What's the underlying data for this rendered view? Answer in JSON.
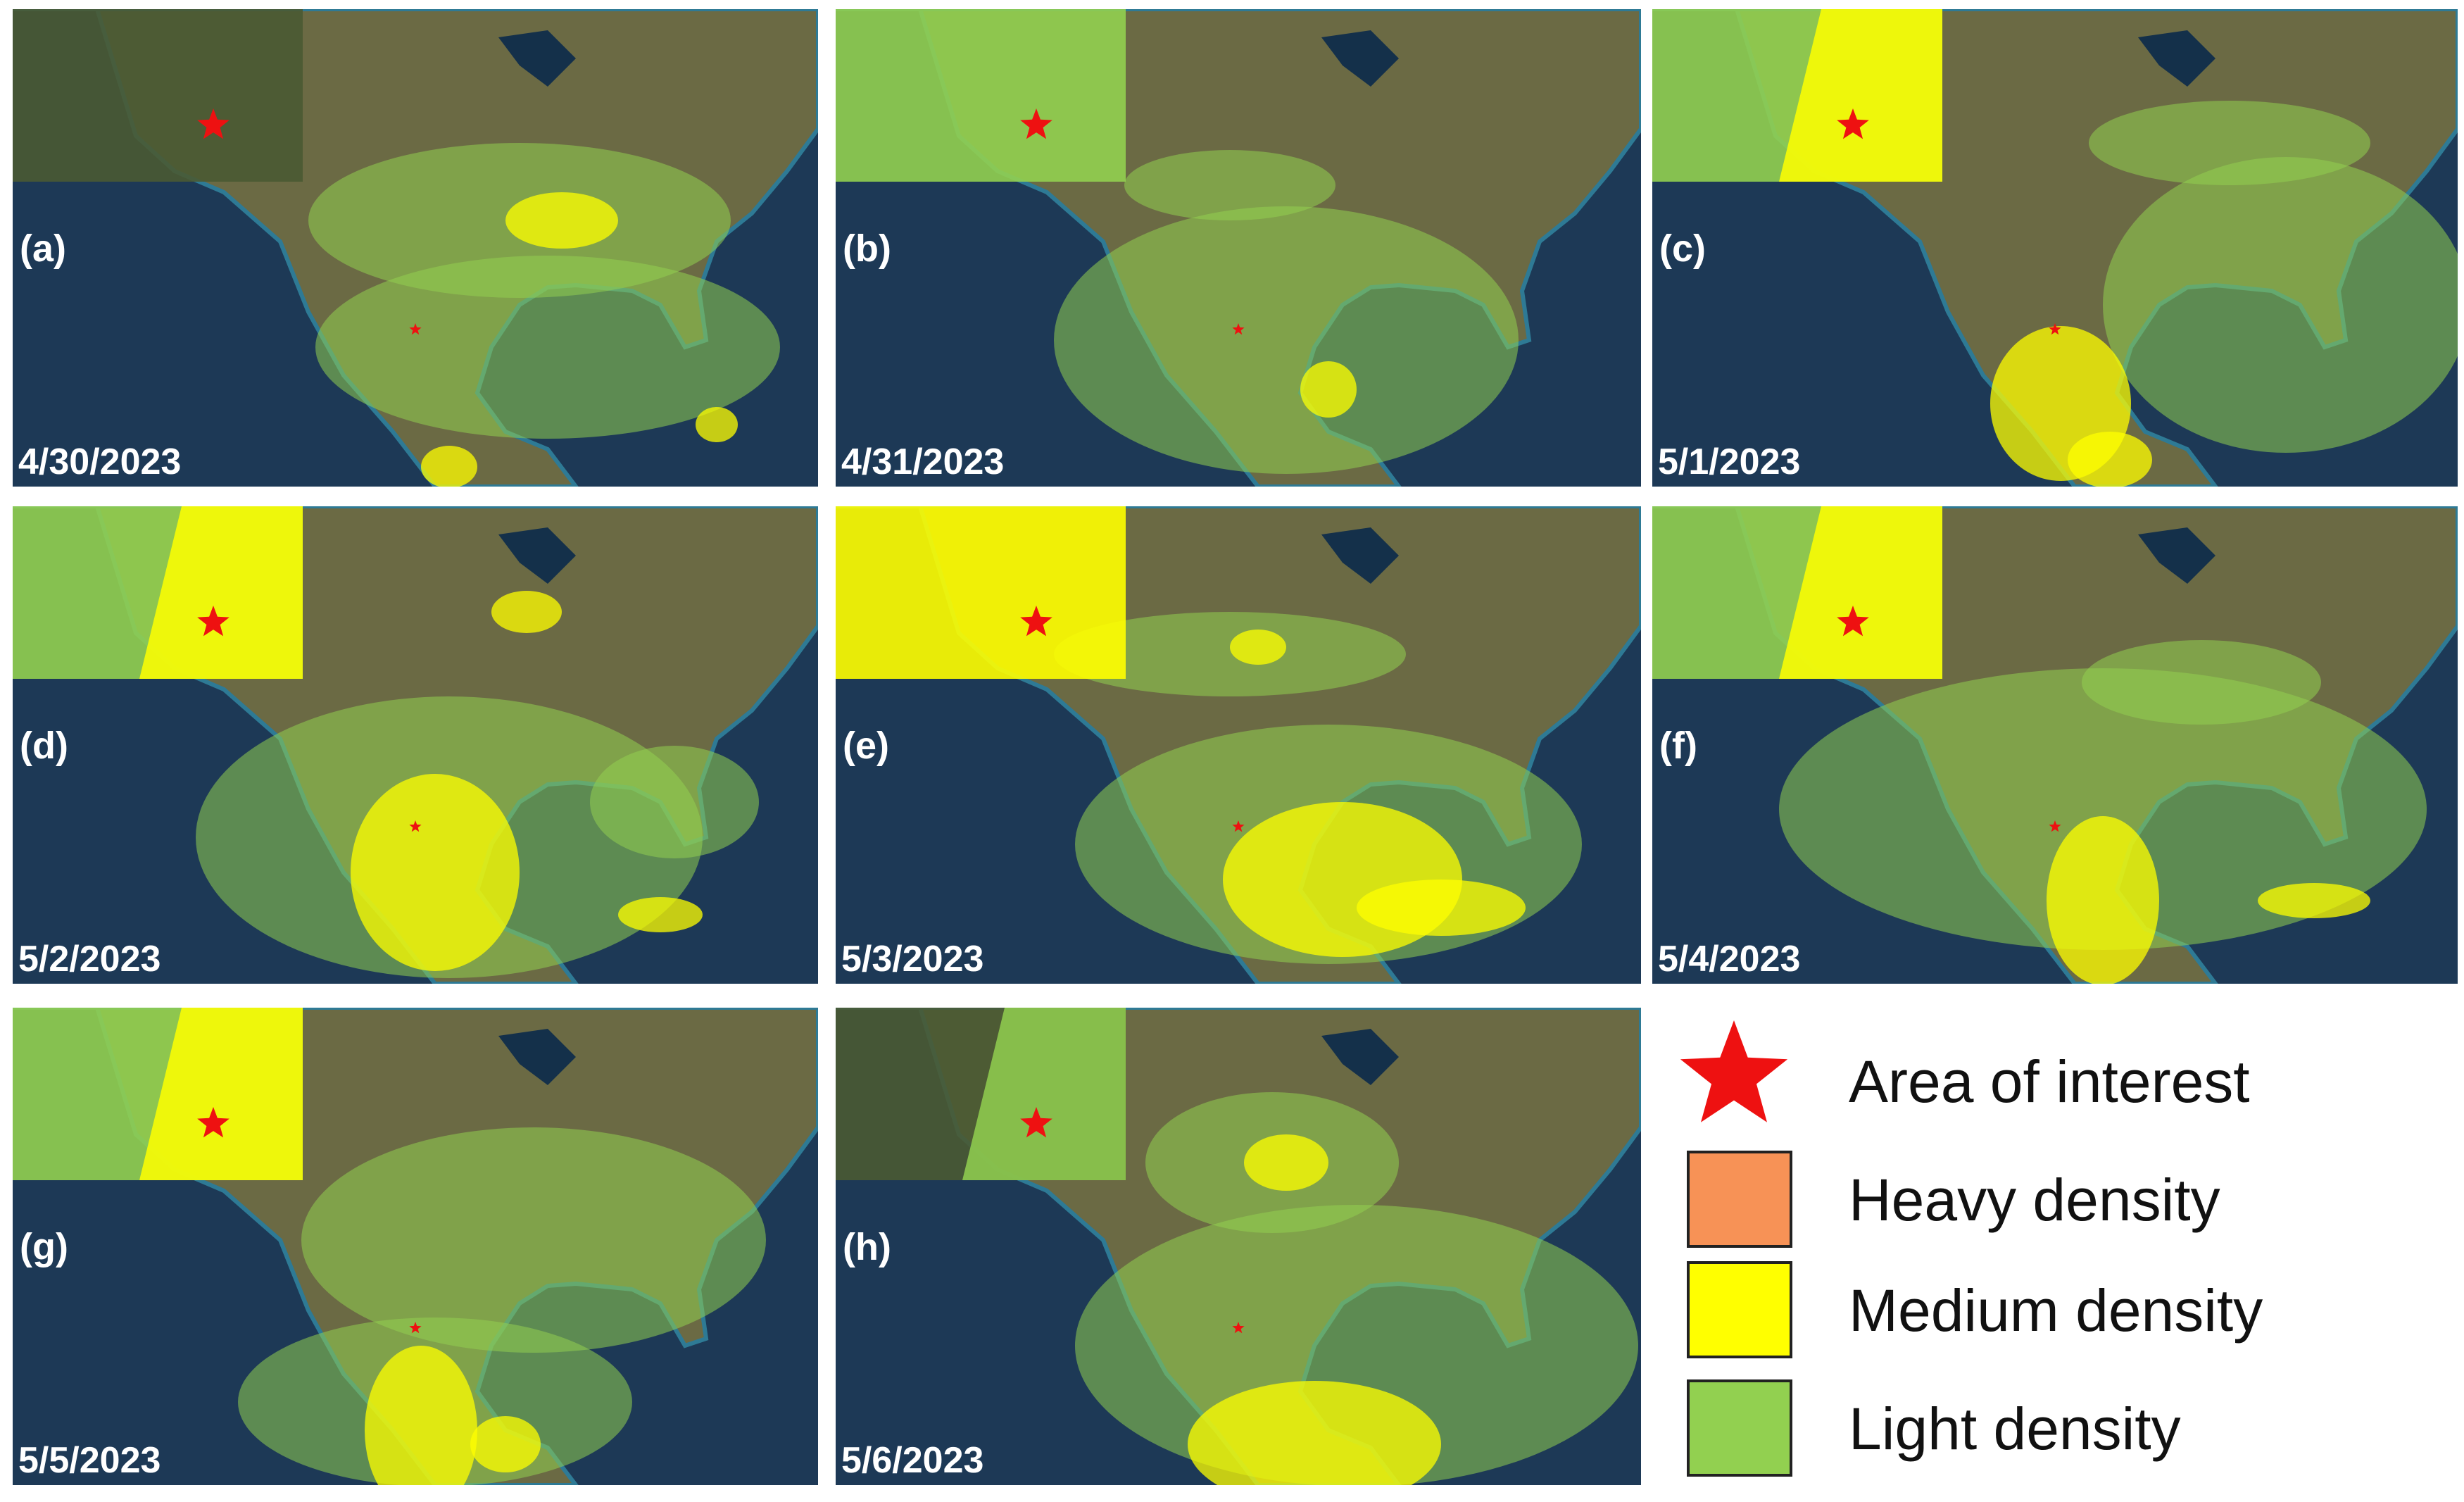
{
  "panels": [
    {
      "label": "(a)",
      "date": "4/30/2023"
    },
    {
      "label": "(b)",
      "date": "4/31/2023"
    },
    {
      "label": "(c)",
      "date": "5/1/2023"
    },
    {
      "label": "(d)",
      "date": "5/2/2023"
    },
    {
      "label": "(e)",
      "date": "5/3/2023"
    },
    {
      "label": "(f)",
      "date": "5/4/2023"
    },
    {
      "label": "(g)",
      "date": "5/5/2023"
    },
    {
      "label": "(h)",
      "date": "5/6/2023"
    }
  ],
  "legend": {
    "marker": {
      "label": "Area of interest",
      "color": "#ee1111"
    },
    "items": [
      {
        "label": "Heavy density",
        "color": "#f79256"
      },
      {
        "label": "Medium density",
        "color": "#ffff00"
      },
      {
        "label": "Light density",
        "color": "#92d050"
      }
    ]
  }
}
